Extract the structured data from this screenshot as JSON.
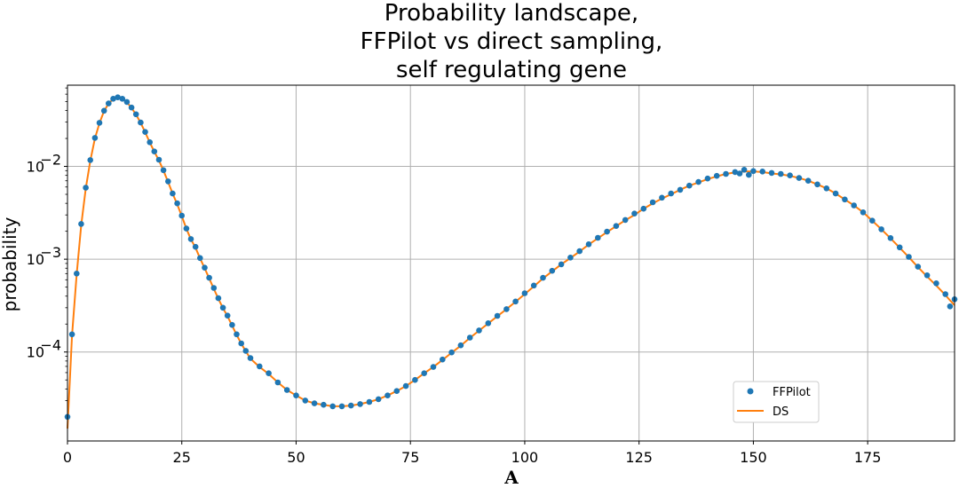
{
  "chart_data": {
    "type": "line",
    "title": [
      "Probability landscape,",
      "FFPilot vs direct sampling,",
      "self regulating gene"
    ],
    "xlabel": "A",
    "ylabel": "probability",
    "xlim": [
      0,
      194
    ],
    "ylim": [
      1.1e-05,
      0.075
    ],
    "yscale": "log",
    "grid": true,
    "legend_position": "lower-right",
    "x_ticks": [
      {
        "value": 0,
        "label": "0"
      },
      {
        "value": 25,
        "label": "25"
      },
      {
        "value": 50,
        "label": "50"
      },
      {
        "value": 75,
        "label": "75"
      },
      {
        "value": 100,
        "label": "100"
      },
      {
        "value": 125,
        "label": "125"
      },
      {
        "value": 150,
        "label": "150"
      },
      {
        "value": 175,
        "label": "175"
      }
    ],
    "y_ticks": [
      {
        "value": 0.0001,
        "base": "10",
        "exp": "−4"
      },
      {
        "value": 0.001,
        "base": "10",
        "exp": "−3"
      },
      {
        "value": 0.01,
        "base": "10",
        "exp": "−2"
      }
    ],
    "series": [
      {
        "name": "FFPilot",
        "style": "markers",
        "color": "#1f77b4",
        "x": [
          0,
          1,
          2,
          3,
          4,
          5,
          6,
          7,
          8,
          9,
          10,
          11,
          12,
          13,
          14,
          15,
          16,
          17,
          18,
          19,
          20,
          21,
          22,
          23,
          24,
          25,
          26,
          27,
          28,
          29,
          30,
          31,
          32,
          33,
          34,
          35,
          36,
          37,
          38,
          39,
          40,
          42,
          44,
          46,
          48,
          50,
          52,
          54,
          56,
          58,
          60,
          62,
          64,
          66,
          68,
          70,
          72,
          74,
          76,
          78,
          80,
          82,
          84,
          86,
          88,
          90,
          92,
          94,
          96,
          98,
          100,
          102,
          104,
          106,
          108,
          110,
          112,
          114,
          116,
          118,
          120,
          122,
          124,
          126,
          128,
          130,
          132,
          134,
          136,
          138,
          140,
          142,
          144,
          146,
          147,
          148,
          149,
          150,
          152,
          154,
          156,
          158,
          160,
          162,
          164,
          166,
          168,
          170,
          172,
          174,
          176,
          178,
          180,
          182,
          184,
          186,
          188,
          190,
          192,
          193,
          194
        ],
        "y": [
          2e-05,
          0.000155,
          0.0007,
          0.0024,
          0.0059,
          0.0117,
          0.0203,
          0.0295,
          0.0398,
          0.0477,
          0.0535,
          0.0555,
          0.0536,
          0.0495,
          0.0431,
          0.0364,
          0.0297,
          0.0235,
          0.0182,
          0.0145,
          0.0118,
          0.0091,
          0.0069,
          0.0051,
          0.004,
          0.00295,
          0.00214,
          0.00165,
          0.00136,
          0.00103,
          0.00081,
          0.00063,
          0.00049,
          0.00038,
          0.0003,
          0.000247,
          0.000196,
          0.000155,
          0.000124,
          0.000103,
          8.6e-05,
          7e-05,
          5.9e-05,
          4.7e-05,
          3.9e-05,
          3.4e-05,
          3e-05,
          2.8e-05,
          2.7e-05,
          2.6e-05,
          2.6e-05,
          2.65e-05,
          2.75e-05,
          2.9e-05,
          3.1e-05,
          3.4e-05,
          3.8e-05,
          4.3e-05,
          5e-05,
          5.9e-05,
          6.9e-05,
          8.3e-05,
          9.9e-05,
          0.000118,
          0.000143,
          0.000171,
          0.000204,
          0.000245,
          0.00029,
          0.00035,
          0.00043,
          0.00052,
          0.00063,
          0.00075,
          0.00088,
          0.00104,
          0.00122,
          0.00145,
          0.0017,
          0.00198,
          0.00228,
          0.00265,
          0.0031,
          0.0035,
          0.0041,
          0.0046,
          0.0051,
          0.0056,
          0.0062,
          0.0068,
          0.0074,
          0.0079,
          0.0083,
          0.0087,
          0.0084,
          0.0092,
          0.0081,
          0.0089,
          0.0088,
          0.0085,
          0.0083,
          0.008,
          0.0075,
          0.007,
          0.0064,
          0.0058,
          0.0051,
          0.0044,
          0.0038,
          0.0032,
          0.0026,
          0.0021,
          0.00169,
          0.00134,
          0.00106,
          0.00083,
          0.00067,
          0.00055,
          0.00042,
          0.00031,
          0.00037
        ]
      },
      {
        "name": "DS",
        "style": "line",
        "color": "#ff7f0e",
        "x": [
          0,
          1,
          2,
          3,
          4,
          5,
          6,
          7,
          8,
          9,
          10,
          11,
          12,
          13,
          14,
          15,
          16,
          17,
          18,
          19,
          20,
          21,
          22,
          23,
          24,
          25,
          26,
          27,
          28,
          29,
          30,
          31,
          32,
          33,
          34,
          35,
          36,
          37,
          38,
          39,
          40,
          42,
          44,
          46,
          48,
          50,
          52,
          54,
          56,
          58,
          60,
          62,
          64,
          66,
          68,
          70,
          72,
          74,
          76,
          78,
          80,
          82,
          84,
          86,
          88,
          90,
          92,
          94,
          96,
          98,
          100,
          102,
          104,
          106,
          108,
          110,
          112,
          114,
          116,
          118,
          120,
          122,
          124,
          126,
          128,
          130,
          132,
          134,
          136,
          138,
          140,
          142,
          144,
          146,
          148,
          150,
          152,
          154,
          156,
          158,
          160,
          162,
          164,
          166,
          168,
          170,
          172,
          174,
          176,
          178,
          180,
          182,
          184,
          186,
          188,
          190,
          192,
          193,
          194
        ],
        "y": [
          1.5e-05,
          0.00015,
          0.00068,
          0.0023,
          0.0058,
          0.0115,
          0.02,
          0.0292,
          0.0395,
          0.0475,
          0.0532,
          0.0552,
          0.0534,
          0.0492,
          0.0428,
          0.0362,
          0.0295,
          0.0233,
          0.0181,
          0.0144,
          0.0116,
          0.009,
          0.0068,
          0.0051,
          0.0039,
          0.00292,
          0.00213,
          0.00164,
          0.00133,
          0.00102,
          0.0008,
          0.00062,
          0.00048,
          0.000375,
          0.000297,
          0.000243,
          0.000193,
          0.000153,
          0.000123,
          0.000102,
          8.5e-05,
          6.9e-05,
          5.8e-05,
          4.7e-05,
          3.9e-05,
          3.4e-05,
          3e-05,
          2.8e-05,
          2.7e-05,
          2.6e-05,
          2.6e-05,
          2.65e-05,
          2.75e-05,
          2.9e-05,
          3.1e-05,
          3.4e-05,
          3.8e-05,
          4.3e-05,
          5e-05,
          5.9e-05,
          6.9e-05,
          8.2e-05,
          9.8e-05,
          0.000117,
          0.000142,
          0.00017,
          0.000203,
          0.000243,
          0.00029,
          0.000348,
          0.00042,
          0.00051,
          0.00062,
          0.00074,
          0.00088,
          0.00103,
          0.00121,
          0.00144,
          0.00168,
          0.00196,
          0.00227,
          0.00263,
          0.003,
          0.0035,
          0.004,
          0.0045,
          0.005,
          0.0056,
          0.0062,
          0.0067,
          0.0073,
          0.0078,
          0.0083,
          0.0086,
          0.0088,
          0.0088,
          0.0087,
          0.0084,
          0.0082,
          0.0079,
          0.0075,
          0.007,
          0.0064,
          0.0058,
          0.0051,
          0.0044,
          0.0038,
          0.0032,
          0.0026,
          0.0021,
          0.00168,
          0.00133,
          0.00105,
          0.00082,
          0.00065,
          0.00052,
          0.00041,
          0.00036,
          0.00032
        ]
      }
    ]
  }
}
